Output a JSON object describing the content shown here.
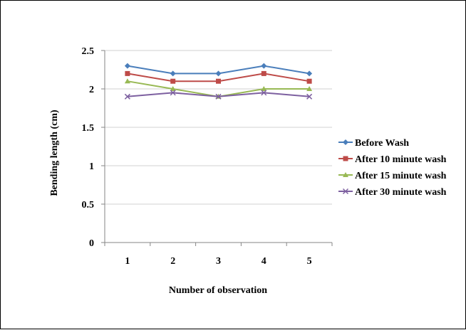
{
  "chart_data": {
    "type": "line",
    "title": "",
    "xlabel": "Number of observation",
    "ylabel": "Bending length (cm)",
    "x": [
      1,
      2,
      3,
      4,
      5
    ],
    "ylim": [
      0,
      2.5
    ],
    "yticks": [
      "0",
      "0.5",
      "1",
      "1.5",
      "2",
      "2.5"
    ],
    "grid": "horizontal",
    "legend_position": "right",
    "series": [
      {
        "name": "Before Wash",
        "values": [
          2.3,
          2.2,
          2.2,
          2.3,
          2.2
        ],
        "color": "#4a7ebb",
        "marker": "diamond"
      },
      {
        "name": "After 10 minute wash",
        "values": [
          2.2,
          2.1,
          2.1,
          2.2,
          2.1
        ],
        "color": "#be4b48",
        "marker": "square"
      },
      {
        "name": "After 15 minute wash",
        "values": [
          2.1,
          2.0,
          1.9,
          2.0,
          2.0
        ],
        "color": "#98b954",
        "marker": "triangle"
      },
      {
        "name": "After 30 minute wash",
        "values": [
          1.9,
          1.95,
          1.9,
          1.95,
          1.9
        ],
        "color": "#7d60a0",
        "marker": "x"
      }
    ]
  }
}
